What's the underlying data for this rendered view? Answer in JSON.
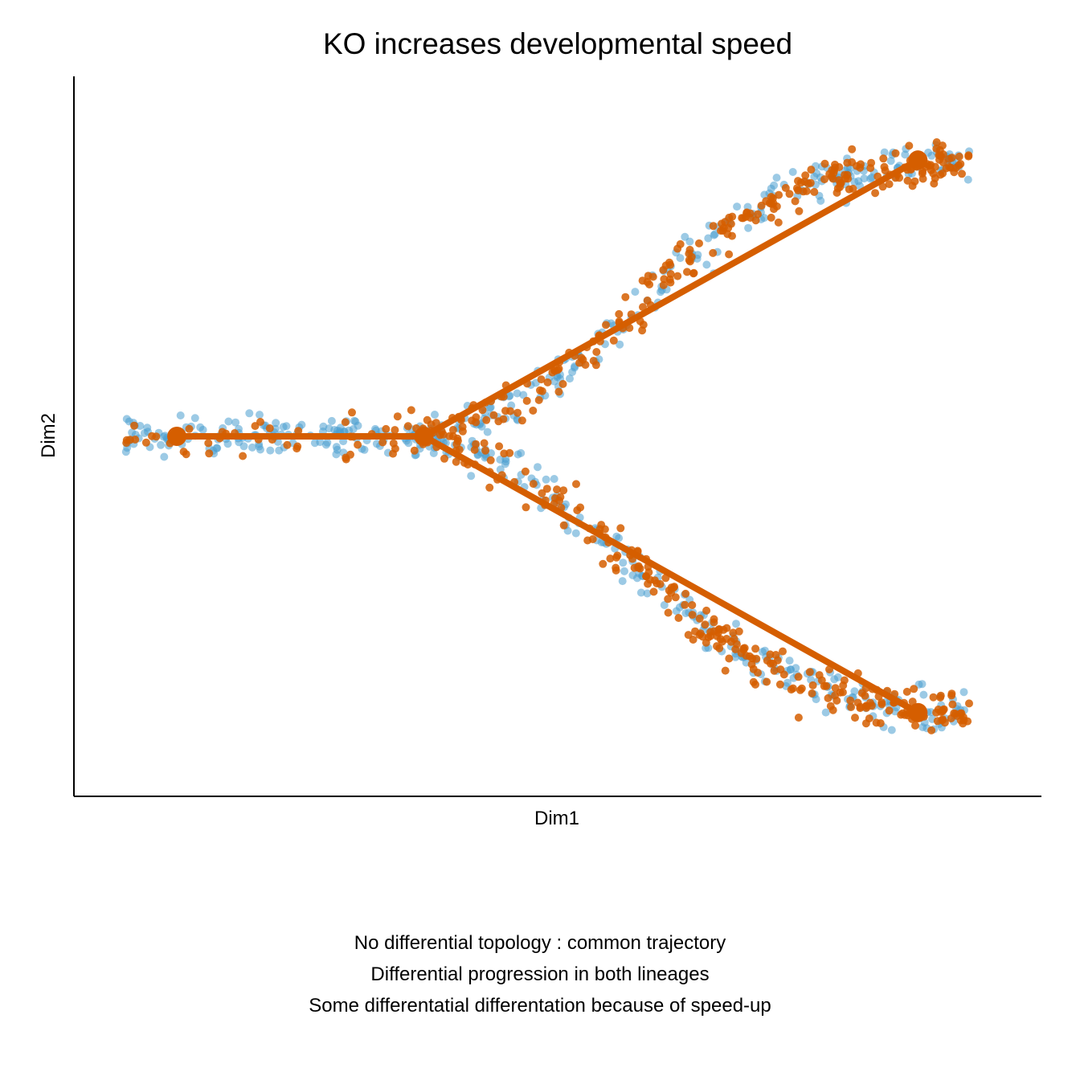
{
  "chart_data": {
    "type": "scatter",
    "title": "KO increases developmental speed",
    "xlabel": "Dim1",
    "ylabel": "Dim2",
    "xlim": [
      -1.7,
      3.0
    ],
    "ylim": [
      -1.72,
      1.72
    ],
    "grid": false,
    "legend": "none",
    "series_colors": {
      "control": "#4a9fd0",
      "ko": "#d55e00"
    },
    "trajectory": {
      "color": "#d55e00",
      "nodes": {
        "start": [
          -1.2,
          0
        ],
        "branch": [
          0,
          0
        ],
        "end_upper": [
          2.4,
          1.32
        ],
        "end_lower": [
          2.4,
          -1.32
        ]
      },
      "edges": [
        [
          "start",
          "branch"
        ],
        [
          "branch",
          "end_upper"
        ],
        [
          "branch",
          "end_lower"
        ]
      ]
    }
  },
  "caption": [
    "No differential topology : common trajectory",
    "Differential progression in both lineages",
    "Some differentatial differentation because of speed-up"
  ]
}
